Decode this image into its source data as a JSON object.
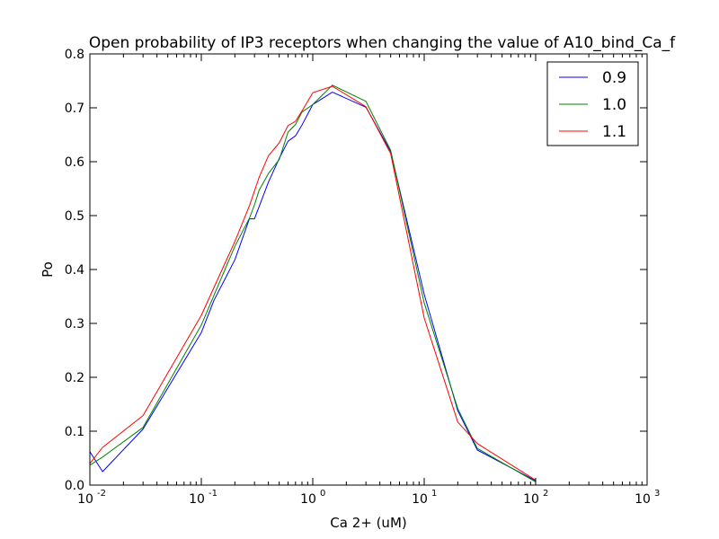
{
  "chart_data": {
    "type": "line",
    "title": "Open probability of IP3 receptors when changing the value of A10_bind_Ca_f",
    "xlabel": "Ca 2+ (uM)",
    "ylabel": "Po",
    "xscale": "log",
    "xlim": [
      0.01,
      1000
    ],
    "ylim": [
      0.0,
      0.8
    ],
    "x_ticks": [
      {
        "value": 0.01,
        "base": "10",
        "exp": "-2"
      },
      {
        "value": 0.1,
        "base": "10",
        "exp": "-1"
      },
      {
        "value": 1,
        "base": "10",
        "exp": "0"
      },
      {
        "value": 10,
        "base": "10",
        "exp": "1"
      },
      {
        "value": 100,
        "base": "10",
        "exp": "2"
      },
      {
        "value": 1000,
        "base": "10",
        "exp": "3"
      }
    ],
    "y_ticks": [
      {
        "value": 0.0,
        "label": "0.0"
      },
      {
        "value": 0.1,
        "label": "0.1"
      },
      {
        "value": 0.2,
        "label": "0.2"
      },
      {
        "value": 0.3,
        "label": "0.3"
      },
      {
        "value": 0.4,
        "label": "0.4"
      },
      {
        "value": 0.5,
        "label": "0.5"
      },
      {
        "value": 0.6,
        "label": "0.6"
      },
      {
        "value": 0.7,
        "label": "0.7"
      },
      {
        "value": 0.8,
        "label": "0.8"
      }
    ],
    "legend_position": "top-right",
    "grid": false,
    "series": [
      {
        "name": "0.9",
        "color": "#0000ff",
        "points": [
          [
            0.01,
            0.062
          ],
          [
            0.013,
            0.025
          ],
          [
            0.03,
            0.104
          ],
          [
            0.1,
            0.283
          ],
          [
            0.13,
            0.343
          ],
          [
            0.2,
            0.418
          ],
          [
            0.27,
            0.494
          ],
          [
            0.3,
            0.494
          ],
          [
            0.4,
            0.562
          ],
          [
            0.5,
            0.606
          ],
          [
            0.6,
            0.638
          ],
          [
            0.7,
            0.648
          ],
          [
            0.8,
            0.668
          ],
          [
            1.0,
            0.706
          ],
          [
            1.5,
            0.729
          ],
          [
            3.0,
            0.701
          ],
          [
            5.0,
            0.619
          ],
          [
            10.0,
            0.354
          ],
          [
            20.0,
            0.138
          ],
          [
            30.0,
            0.065
          ],
          [
            100.0,
            0.008
          ]
        ]
      },
      {
        "name": "1.0",
        "color": "#008000",
        "points": [
          [
            0.01,
            0.037
          ],
          [
            0.013,
            0.052
          ],
          [
            0.03,
            0.107
          ],
          [
            0.1,
            0.297
          ],
          [
            0.2,
            0.443
          ],
          [
            0.27,
            0.495
          ],
          [
            0.3,
            0.52
          ],
          [
            0.33,
            0.547
          ],
          [
            0.4,
            0.578
          ],
          [
            0.5,
            0.604
          ],
          [
            0.6,
            0.655
          ],
          [
            0.7,
            0.669
          ],
          [
            0.8,
            0.692
          ],
          [
            1.0,
            0.706
          ],
          [
            1.5,
            0.742
          ],
          [
            3.0,
            0.712
          ],
          [
            5.0,
            0.621
          ],
          [
            10.0,
            0.338
          ],
          [
            20.0,
            0.142
          ],
          [
            30.0,
            0.068
          ],
          [
            100.0,
            0.006
          ]
        ]
      },
      {
        "name": "1.1",
        "color": "#ff0000",
        "points": [
          [
            0.01,
            0.04
          ],
          [
            0.013,
            0.07
          ],
          [
            0.03,
            0.129
          ],
          [
            0.1,
            0.315
          ],
          [
            0.2,
            0.452
          ],
          [
            0.27,
            0.518
          ],
          [
            0.33,
            0.571
          ],
          [
            0.4,
            0.611
          ],
          [
            0.5,
            0.635
          ],
          [
            0.6,
            0.667
          ],
          [
            0.7,
            0.675
          ],
          [
            0.8,
            0.694
          ],
          [
            1.0,
            0.728
          ],
          [
            1.5,
            0.74
          ],
          [
            3.0,
            0.702
          ],
          [
            5.0,
            0.615
          ],
          [
            10.0,
            0.31
          ],
          [
            20.0,
            0.117
          ],
          [
            30.0,
            0.077
          ],
          [
            100.0,
            0.009
          ]
        ]
      }
    ]
  }
}
